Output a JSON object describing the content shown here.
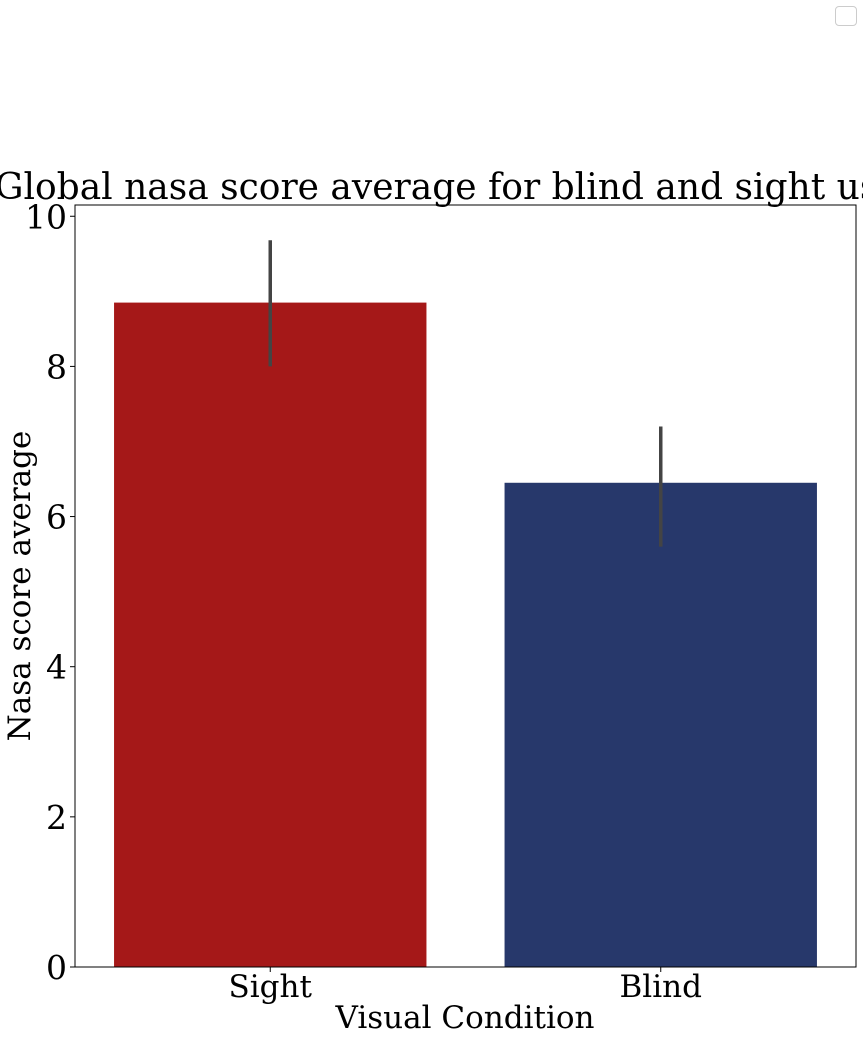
{
  "chart_data": {
    "type": "bar",
    "title": "Global nasa score average for blind and sight users",
    "xlabel": "Visual Condition",
    "ylabel": "Nasa score average",
    "categories": [
      "Sight",
      "Blind"
    ],
    "values": [
      8.85,
      6.45
    ],
    "error_bars": [
      {
        "low": 8.0,
        "high": 9.68
      },
      {
        "low": 5.6,
        "high": 7.2
      }
    ],
    "colors": [
      "#a51818",
      "#27386b"
    ],
    "error_color": "#444444",
    "ylim": [
      0,
      10.15
    ],
    "yticks": [
      0,
      2,
      4,
      6,
      8,
      10
    ],
    "grid": false,
    "legend": "top-right"
  }
}
